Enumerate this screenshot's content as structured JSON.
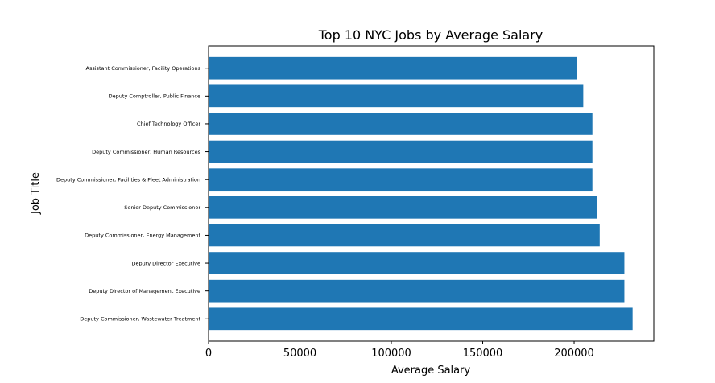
{
  "chart_data": {
    "type": "bar",
    "orientation": "horizontal",
    "title": "Top 10 NYC Jobs by Average Salary",
    "xlabel": "Average Salary",
    "ylabel": "Job Title",
    "categories": [
      "Deputy Commissioner, Wastewater Treatment",
      "Deputy Director of Management  Executive",
      "Deputy Director  Executive",
      "Deputy Commissioner, Energy Management",
      "Senior Deputy Commissioner",
      "Deputy Commissioner, Facilities & Fleet Administration",
      "Deputy Commissioner, Human Resources",
      "Chief Technology Officer",
      "Deputy Comptroller, Public Finance",
      "Assistant Commissioner, Facility Operations"
    ],
    "values": [
      232000,
      227500,
      227500,
      214000,
      212500,
      210000,
      210000,
      210000,
      205000,
      201500
    ],
    "xlim": [
      0,
      243600
    ],
    "xticks": [
      0,
      50000,
      100000,
      150000,
      200000
    ],
    "xtick_labels": [
      "0",
      "50000",
      "100000",
      "150000",
      "200000"
    ],
    "grid": false,
    "legend": "none",
    "bar_color": "#1f77b4"
  }
}
